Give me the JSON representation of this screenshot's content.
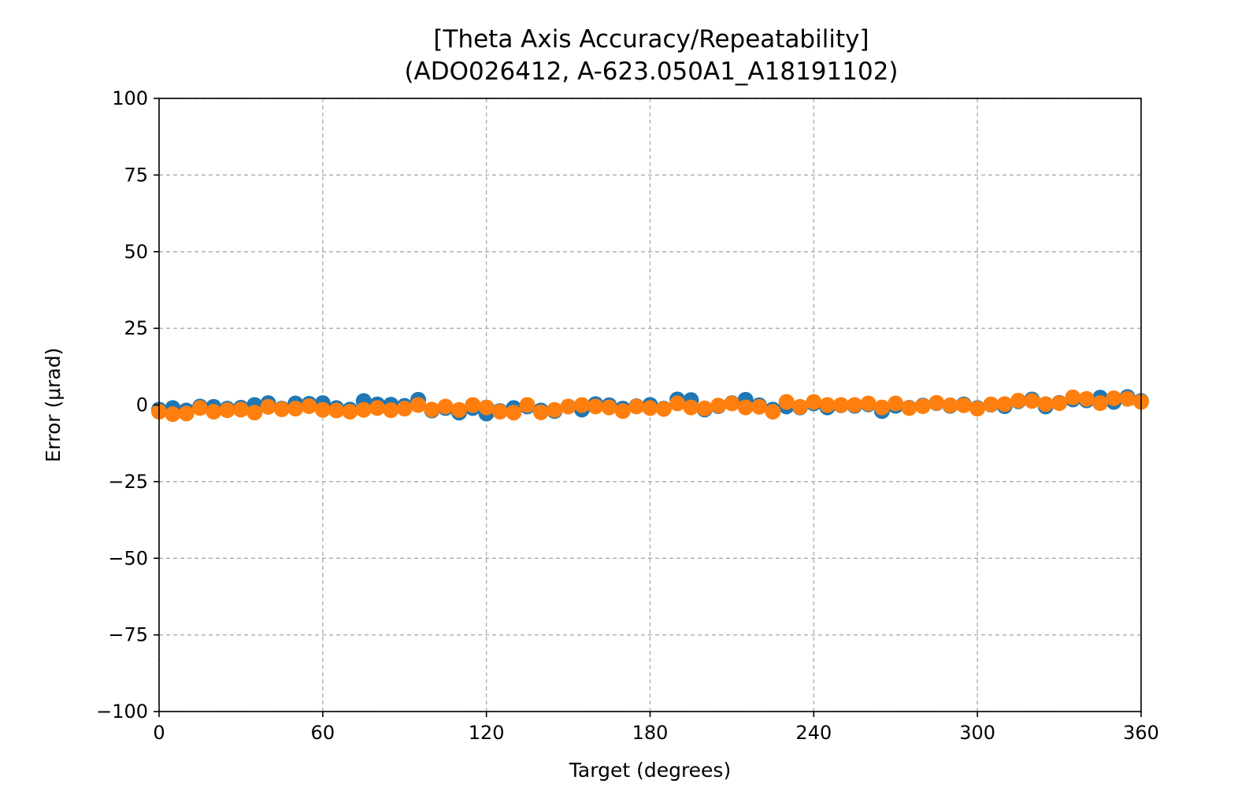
{
  "chart_data": {
    "type": "scatter",
    "title_line1": "[Theta Axis Accuracy/Repeatability]",
    "title_line2": "(ADO026412, A-623.050A1_A18191102)",
    "xlabel": "Target (degrees)",
    "ylabel": "Error (μrad)",
    "xlim": [
      0,
      360
    ],
    "ylim": [
      -100,
      100
    ],
    "x_ticks": [
      0,
      60,
      120,
      180,
      240,
      300,
      360
    ],
    "y_ticks": [
      100,
      75,
      50,
      25,
      0,
      -25,
      -50,
      -75,
      -100
    ],
    "x_tick_labels": [
      "0",
      "60",
      "120",
      "180",
      "240",
      "300",
      "360"
    ],
    "y_tick_labels": [
      "100",
      "75",
      "50",
      "25",
      "0",
      "−25",
      "−50",
      "−75",
      "−100"
    ],
    "grid": true,
    "legend": "none",
    "series": [
      {
        "color": "#1f77b4",
        "x": [
          0,
          5,
          10,
          15,
          20,
          25,
          30,
          35,
          40,
          45,
          50,
          55,
          60,
          65,
          70,
          75,
          80,
          85,
          90,
          95,
          100,
          105,
          110,
          115,
          120,
          125,
          130,
          135,
          140,
          145,
          150,
          155,
          160,
          165,
          170,
          175,
          180,
          185,
          190,
          195,
          200,
          205,
          210,
          215,
          220,
          225,
          230,
          235,
          240,
          245,
          250,
          255,
          260,
          265,
          270,
          275,
          280,
          285,
          290,
          295,
          300,
          305,
          310,
          315,
          320,
          325,
          330,
          335,
          340,
          345,
          350,
          355,
          360
        ],
        "y": [
          -1.5,
          -1.0,
          -1.8,
          -0.5,
          -0.6,
          -1.2,
          -0.9,
          0.0,
          0.6,
          -1.2,
          0.5,
          0.4,
          0.6,
          -1.0,
          -1.5,
          1.3,
          0.2,
          0.1,
          -0.3,
          1.7,
          -1.8,
          -1.0,
          -2.5,
          -1.0,
          -2.8,
          -2.0,
          -1.0,
          -0.5,
          -1.8,
          -2.0,
          -0.5,
          -1.5,
          0.3,
          -0.1,
          -1.2,
          -0.4,
          0.0,
          -1.2,
          1.8,
          1.6,
          -1.5,
          -0.4,
          0.6,
          1.7,
          -0.1,
          -1.5,
          -0.5,
          -0.8,
          0.5,
          -0.8,
          -0.1,
          -0.3,
          0.2,
          -2.0,
          -0.3,
          -0.9,
          -0.2,
          0.6,
          -0.3,
          0.2,
          -1.0,
          0.1,
          -0.4,
          1.2,
          1.8,
          -0.5,
          0.7,
          1.8,
          1.5,
          2.4,
          1.0,
          2.6,
          1.3
        ]
      },
      {
        "color": "#ff7f0e",
        "x": [
          0,
          5,
          10,
          15,
          20,
          25,
          30,
          35,
          40,
          45,
          50,
          55,
          60,
          65,
          70,
          75,
          80,
          85,
          90,
          95,
          100,
          105,
          110,
          115,
          120,
          125,
          130,
          135,
          140,
          145,
          150,
          155,
          160,
          165,
          170,
          175,
          180,
          185,
          190,
          195,
          200,
          205,
          210,
          215,
          220,
          225,
          230,
          235,
          240,
          245,
          250,
          255,
          260,
          265,
          270,
          275,
          280,
          285,
          290,
          295,
          300,
          305,
          310,
          315,
          320,
          325,
          330,
          335,
          340,
          345,
          350,
          355,
          360
        ],
        "y": [
          -2.2,
          -3.0,
          -2.8,
          -1.0,
          -2.2,
          -1.7,
          -1.5,
          -2.5,
          -0.6,
          -1.4,
          -1.2,
          -0.4,
          -1.6,
          -1.8,
          -2.2,
          -1.6,
          -1.0,
          -1.7,
          -1.2,
          0.0,
          -1.5,
          -0.5,
          -1.6,
          0.0,
          -0.8,
          -2.2,
          -2.5,
          0.0,
          -2.4,
          -1.6,
          -0.5,
          0.0,
          -0.5,
          -0.8,
          -2.0,
          -0.5,
          -1.0,
          -1.3,
          0.5,
          -0.8,
          -1.1,
          -0.2,
          0.5,
          -0.8,
          -0.6,
          -2.2,
          1.0,
          -0.6,
          1.0,
          0.0,
          0.0,
          0.0,
          0.5,
          -0.8,
          0.5,
          -1.0,
          -0.4,
          0.7,
          -0.1,
          -0.1,
          -1.2,
          0.2,
          0.3,
          1.4,
          1.3,
          0.3,
          0.6,
          2.5,
          2.0,
          0.6,
          2.2,
          2.0,
          1.0
        ]
      }
    ]
  }
}
